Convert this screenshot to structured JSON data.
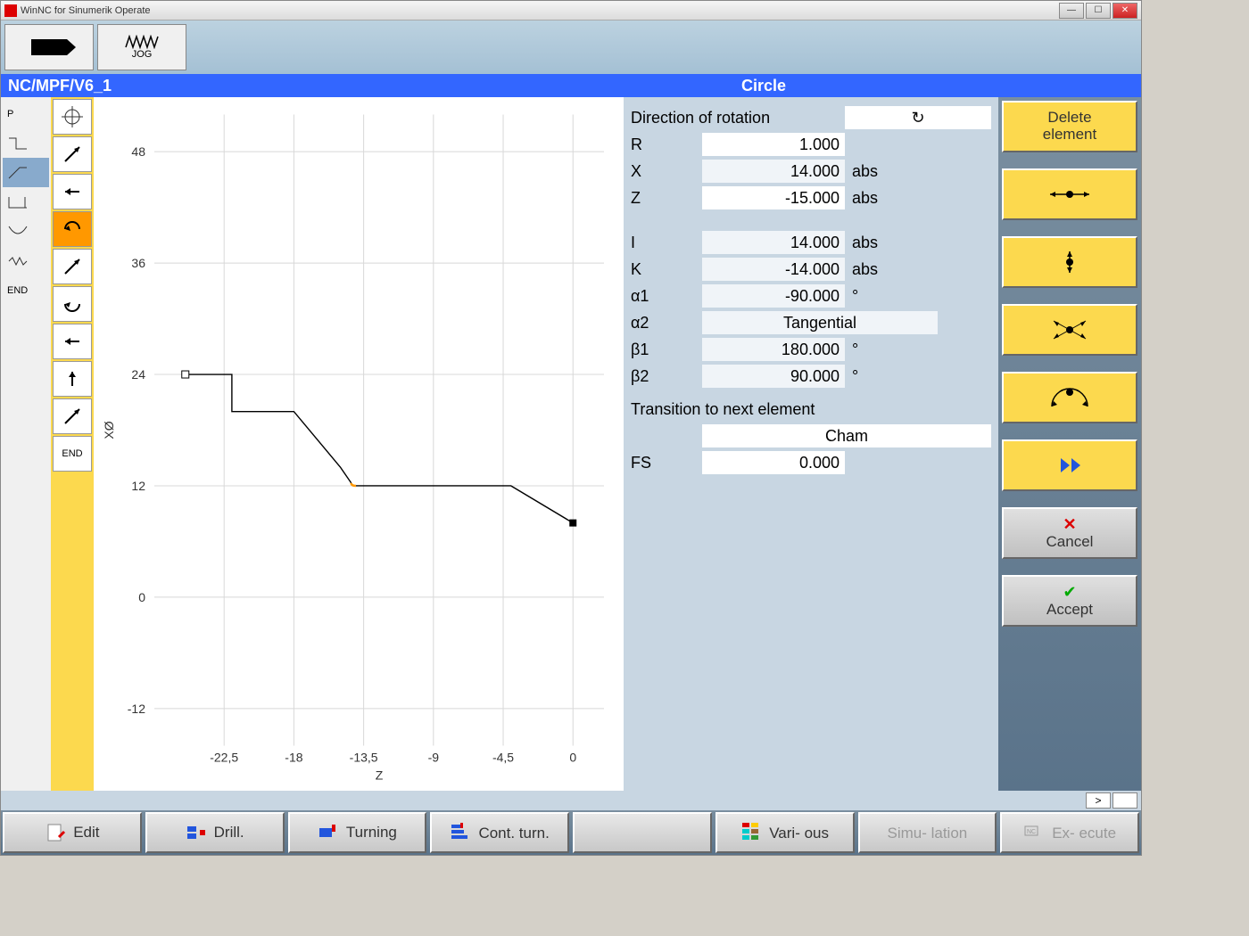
{
  "window": {
    "title": "WinNC for Sinumerik Operate"
  },
  "top": {
    "jog_label": "JOG"
  },
  "bluebar": {
    "path": "NC/MPF/V6_1",
    "mode": "Circle"
  },
  "leftcol": {
    "items": [
      "P",
      "",
      "",
      "",
      "",
      "",
      "END"
    ],
    "selected_index": 2
  },
  "iconcol": {
    "items": [
      {
        "kind": "target"
      },
      {
        "kind": "arrow-ne"
      },
      {
        "kind": "arrow-left"
      },
      {
        "kind": "arc-cw",
        "selected": true
      },
      {
        "kind": "arrow-ne"
      },
      {
        "kind": "arc-ccw"
      },
      {
        "kind": "arrow-left"
      },
      {
        "kind": "arrow-up"
      },
      {
        "kind": "arrow-ne"
      },
      {
        "kind": "end",
        "label": "END"
      }
    ]
  },
  "chart": {
    "type": "line",
    "xlabel": "Z",
    "ylabel": "XØ",
    "xlim": [
      -27,
      2
    ],
    "ylim": [
      -16,
      52
    ],
    "xticks": [
      -22.5,
      -18,
      -13.5,
      -9,
      -4.5,
      0
    ],
    "yticks": [
      -12,
      0,
      12,
      24,
      36,
      48
    ],
    "background_color": "#ffffff",
    "grid_color": "#d8d8d8",
    "axis_color": "#333333",
    "text_color": "#333333",
    "font_size": 14,
    "path": {
      "points": [
        {
          "z": -25,
          "x": 24,
          "marker": "start"
        },
        {
          "z": -22,
          "x": 24
        },
        {
          "z": -22,
          "x": 20
        },
        {
          "z": -18,
          "x": 20
        },
        {
          "z": -15,
          "x": 14
        },
        {
          "z": -14.3,
          "x": 12.3,
          "arc_start": true
        },
        {
          "z": -14,
          "x": 12,
          "arc_highlight": true
        },
        {
          "z": -4,
          "x": 12
        },
        {
          "z": 0,
          "x": 8,
          "marker": "end"
        }
      ],
      "stroke": "#000000",
      "highlight_stroke": "#ff9800",
      "stroke_width": 1.4
    }
  },
  "params": {
    "heading_rotation": "Direction of rotation",
    "rows": [
      {
        "label": "R",
        "value": "1.000",
        "unit": "",
        "bg": "white"
      },
      {
        "label": "X",
        "value": "14.000",
        "unit": "abs",
        "bg": ""
      },
      {
        "label": "Z",
        "value": "-15.000",
        "unit": "abs",
        "bg": "white"
      }
    ],
    "rows2": [
      {
        "label": "I",
        "value": "14.000",
        "unit": "abs"
      },
      {
        "label": "K",
        "value": "-14.000",
        "unit": "abs"
      },
      {
        "label": "α1",
        "value": "-90.000",
        "unit": "°"
      },
      {
        "label": "α2",
        "value": "Tangential",
        "unit": "",
        "center": true
      },
      {
        "label": "β1",
        "value": "180.000",
        "unit": "°"
      },
      {
        "label": "β2",
        "value": "90.000",
        "unit": "°"
      }
    ],
    "transition_heading": "Transition to next element",
    "transition_type": "Cham",
    "fs_label": "FS",
    "fs_value": "0.000"
  },
  "softkeys": {
    "delete": "Delete element",
    "cancel": "Cancel",
    "accept": "Accept"
  },
  "bottom": {
    "edit": "Edit",
    "drill": "Drill.",
    "turning": "Turning",
    "cont": "Cont. turn.",
    "various": "Vari- ous",
    "simulation": "Simu- lation",
    "execute": "Ex- ecute"
  },
  "pager_next": ">"
}
